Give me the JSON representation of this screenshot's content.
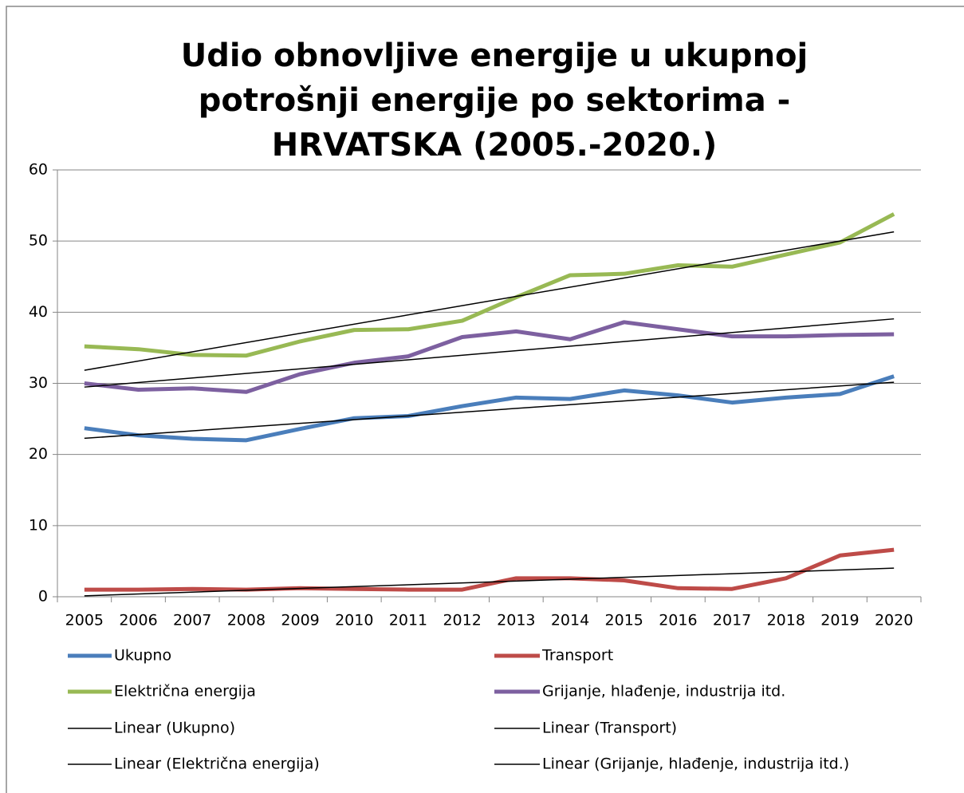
{
  "chart_data": {
    "type": "line",
    "title": "Udio obnovljive energije u ukupnoj potrošnji energije po sektorima - HRVATSKA (2005.-2020.)",
    "categories": [
      "2005",
      "2006",
      "2007",
      "2008",
      "2009",
      "2010",
      "2011",
      "2012",
      "2013",
      "2014",
      "2015",
      "2016",
      "2017",
      "2018",
      "2019",
      "2020"
    ],
    "series": [
      {
        "name": "Ukupno",
        "color": "#4a7ebb",
        "trendline": "Linear (Ukupno)",
        "values": [
          23.7,
          22.7,
          22.2,
          22.0,
          23.6,
          25.1,
          25.4,
          26.8,
          28.0,
          27.8,
          29.0,
          28.3,
          27.3,
          28.0,
          28.5,
          31.0
        ]
      },
      {
        "name": "Transport",
        "color": "#be4b48",
        "trendline": "Linear (Transport)",
        "values": [
          1.0,
          1.0,
          1.1,
          1.0,
          1.2,
          1.1,
          1.0,
          1.0,
          2.6,
          2.6,
          2.3,
          1.2,
          1.1,
          2.6,
          5.8,
          6.6
        ]
      },
      {
        "name": "Električna energija",
        "color": "#98b954",
        "trendline": "Linear (Električna energija)",
        "values": [
          35.2,
          34.8,
          34.0,
          33.9,
          35.9,
          37.5,
          37.6,
          38.8,
          42.1,
          45.2,
          45.4,
          46.6,
          46.4,
          48.1,
          49.8,
          53.8
        ]
      },
      {
        "name": "Grijanje, hlađenje, industrija itd.",
        "color": "#7d60a0",
        "trendline": "Linear (Grijanje, hlađenje, industrija itd.)",
        "values": [
          30.0,
          29.1,
          29.3,
          28.8,
          31.3,
          32.9,
          33.8,
          36.5,
          37.3,
          36.2,
          38.6,
          37.6,
          36.6,
          36.6,
          36.8,
          36.9
        ]
      }
    ],
    "trendline_color": "#000000",
    "ylim": [
      0,
      60
    ],
    "yticks": [
      0,
      10,
      20,
      30,
      40,
      50,
      60
    ],
    "grid": true
  }
}
